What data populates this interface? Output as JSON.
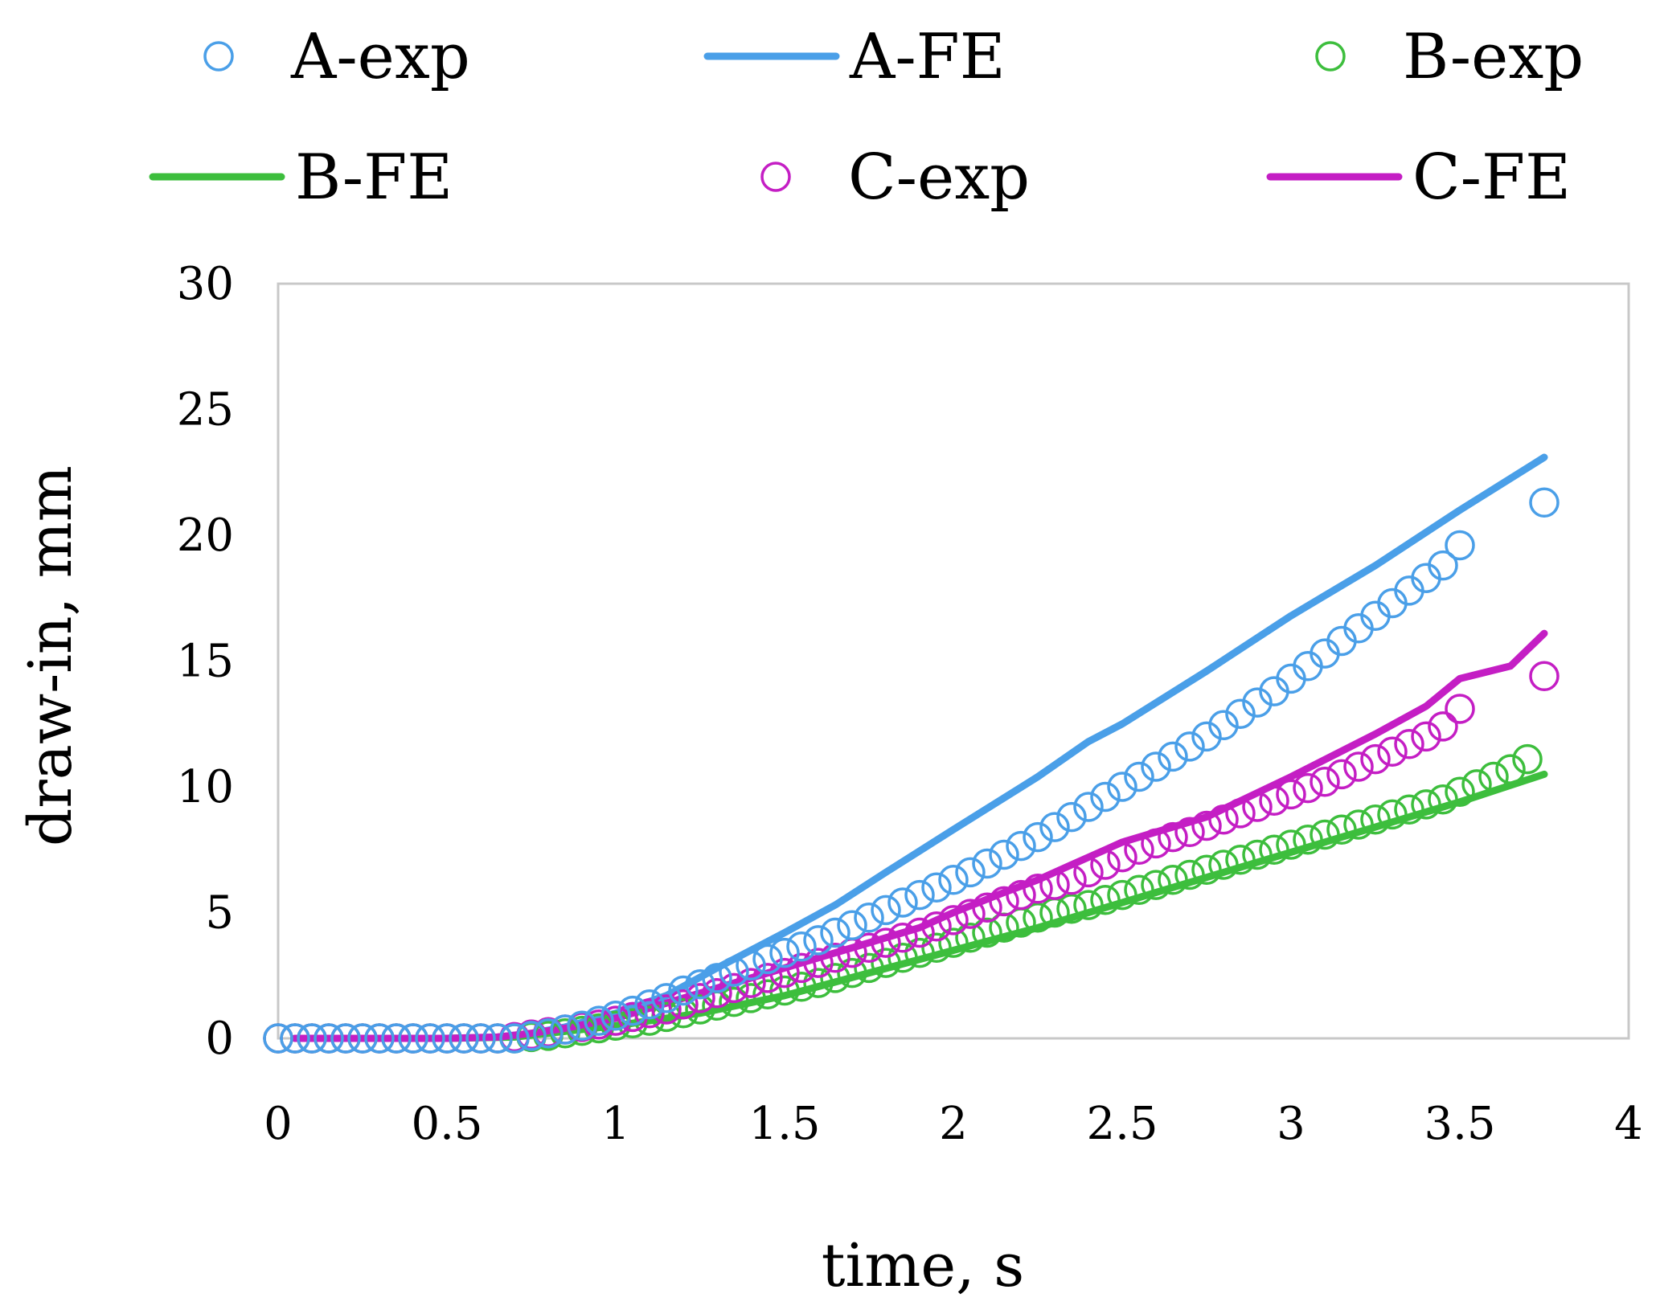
{
  "chart_data": {
    "type": "scatter",
    "title": "",
    "xlabel": "time, s",
    "ylabel": "draw-in, mm",
    "xlim": [
      0,
      4
    ],
    "ylim": [
      0,
      30
    ],
    "xticks": [
      0,
      0.5,
      1,
      1.5,
      2,
      2.5,
      3,
      3.5,
      4
    ],
    "xtick_labels": [
      "0",
      "0.5",
      "1",
      "1.5",
      "2",
      "2.5",
      "3",
      "3.5",
      "4"
    ],
    "yticks": [
      0,
      5,
      10,
      15,
      20,
      25,
      30
    ],
    "ytick_labels": [
      "0",
      "5",
      "10",
      "15",
      "20",
      "25",
      "30"
    ],
    "legend_position": "top",
    "grid": false,
    "series": [
      {
        "name": "A-exp",
        "kind": "markers",
        "color": "#4a9fe8",
        "x": [
          0,
          0.05,
          0.1,
          0.15,
          0.2,
          0.25,
          0.3,
          0.35,
          0.4,
          0.45,
          0.5,
          0.55,
          0.6,
          0.65,
          0.7,
          0.75,
          0.8,
          0.85,
          0.9,
          0.95,
          1,
          1.05,
          1.1,
          1.15,
          1.2,
          1.25,
          1.3,
          1.35,
          1.4,
          1.45,
          1.5,
          1.55,
          1.6,
          1.65,
          1.7,
          1.75,
          1.8,
          1.85,
          1.9,
          1.95,
          2,
          2.05,
          2.1,
          2.15,
          2.2,
          2.25,
          2.3,
          2.35,
          2.4,
          2.45,
          2.5,
          2.55,
          2.6,
          2.65,
          2.7,
          2.75,
          2.8,
          2.85,
          2.9,
          2.95,
          3,
          3.05,
          3.1,
          3.15,
          3.2,
          3.25,
          3.3,
          3.35,
          3.4,
          3.45,
          3.5,
          3.75
        ],
        "y": [
          0,
          0,
          0,
          0,
          0,
          0,
          0,
          0,
          0,
          0,
          0,
          0,
          0,
          0,
          0,
          0.1,
          0.2,
          0.35,
          0.5,
          0.7,
          0.9,
          1.1,
          1.35,
          1.6,
          1.9,
          2.15,
          2.4,
          2.65,
          2.9,
          3.15,
          3.4,
          3.65,
          3.9,
          4.2,
          4.5,
          4.8,
          5.1,
          5.4,
          5.7,
          6.0,
          6.3,
          6.6,
          6.95,
          7.3,
          7.65,
          8.0,
          8.4,
          8.8,
          9.2,
          9.6,
          10.0,
          10.4,
          10.8,
          11.2,
          11.6,
          12.0,
          12.45,
          12.9,
          13.35,
          13.8,
          14.3,
          14.8,
          15.3,
          15.8,
          16.3,
          16.8,
          17.3,
          17.8,
          18.3,
          18.8,
          19.6,
          21.3
        ]
      },
      {
        "name": "A-FE",
        "kind": "line",
        "color": "#4a9fe8",
        "x": [
          0.05,
          0.25,
          0.5,
          0.65,
          0.75,
          0.85,
          1.0,
          1.15,
          1.3,
          1.5,
          1.65,
          1.8,
          2.0,
          2.25,
          2.4,
          2.5,
          2.75,
          3.0,
          3.25,
          3.5,
          3.75
        ],
        "y": [
          0,
          0,
          0,
          0.05,
          0.2,
          0.45,
          1.0,
          1.7,
          2.8,
          4.2,
          5.3,
          6.6,
          8.3,
          10.4,
          11.8,
          12.5,
          14.6,
          16.8,
          18.8,
          21.0,
          23.1
        ]
      },
      {
        "name": "B-exp",
        "kind": "markers",
        "color": "#3dbe3d",
        "x": [
          0,
          0.05,
          0.1,
          0.15,
          0.2,
          0.25,
          0.3,
          0.35,
          0.4,
          0.45,
          0.5,
          0.55,
          0.6,
          0.65,
          0.7,
          0.75,
          0.8,
          0.85,
          0.9,
          0.95,
          1,
          1.05,
          1.1,
          1.15,
          1.2,
          1.25,
          1.3,
          1.35,
          1.4,
          1.45,
          1.5,
          1.55,
          1.6,
          1.65,
          1.7,
          1.75,
          1.8,
          1.85,
          1.9,
          1.95,
          2,
          2.05,
          2.1,
          2.15,
          2.2,
          2.25,
          2.3,
          2.35,
          2.4,
          2.45,
          2.5,
          2.55,
          2.6,
          2.65,
          2.7,
          2.75,
          2.8,
          2.85,
          2.9,
          2.95,
          3,
          3.05,
          3.1,
          3.15,
          3.2,
          3.25,
          3.3,
          3.35,
          3.4,
          3.45,
          3.5,
          3.55,
          3.6,
          3.65,
          3.7
        ],
        "y": [
          0,
          0,
          0,
          0,
          0,
          0,
          0,
          0,
          0,
          0,
          0,
          0,
          0,
          0,
          0,
          0.05,
          0.1,
          0.2,
          0.3,
          0.4,
          0.5,
          0.6,
          0.7,
          0.85,
          1.0,
          1.15,
          1.3,
          1.45,
          1.6,
          1.75,
          1.9,
          2.05,
          2.2,
          2.4,
          2.6,
          2.8,
          3.0,
          3.2,
          3.4,
          3.6,
          3.8,
          4.0,
          4.2,
          4.4,
          4.6,
          4.8,
          5.0,
          5.15,
          5.3,
          5.5,
          5.7,
          5.9,
          6.1,
          6.3,
          6.5,
          6.7,
          6.9,
          7.1,
          7.3,
          7.5,
          7.7,
          7.9,
          8.1,
          8.3,
          8.5,
          8.7,
          8.9,
          9.1,
          9.3,
          9.5,
          9.8,
          10.1,
          10.4,
          10.7,
          11.1
        ]
      },
      {
        "name": "B-FE",
        "kind": "line",
        "color": "#3dbe3d",
        "x": [
          0.05,
          0.5,
          0.7,
          0.8,
          1.0,
          1.25,
          1.5,
          1.75,
          2.0,
          2.25,
          2.5,
          2.75,
          3.0,
          3.25,
          3.5,
          3.75
        ],
        "y": [
          0,
          0,
          0.05,
          0.2,
          0.5,
          1.0,
          1.7,
          2.6,
          3.5,
          4.4,
          5.4,
          6.4,
          7.4,
          8.4,
          9.4,
          10.5
        ]
      },
      {
        "name": "C-exp",
        "kind": "markers",
        "color": "#c41ec4",
        "x": [
          0,
          0.05,
          0.1,
          0.15,
          0.2,
          0.25,
          0.3,
          0.35,
          0.4,
          0.45,
          0.5,
          0.55,
          0.6,
          0.65,
          0.7,
          0.75,
          0.8,
          0.85,
          0.9,
          0.95,
          1,
          1.05,
          1.1,
          1.15,
          1.2,
          1.25,
          1.3,
          1.35,
          1.4,
          1.45,
          1.5,
          1.55,
          1.6,
          1.65,
          1.7,
          1.75,
          1.8,
          1.85,
          1.9,
          1.95,
          2,
          2.05,
          2.1,
          2.15,
          2.2,
          2.25,
          2.3,
          2.35,
          2.4,
          2.45,
          2.5,
          2.55,
          2.6,
          2.65,
          2.7,
          2.75,
          2.8,
          2.85,
          2.9,
          2.95,
          3,
          3.05,
          3.1,
          3.15,
          3.2,
          3.25,
          3.3,
          3.35,
          3.4,
          3.45,
          3.5,
          3.75
        ],
        "y": [
          0,
          0,
          0,
          0,
          0,
          0,
          0,
          0,
          0,
          0,
          0,
          0,
          0,
          0,
          0.05,
          0.15,
          0.25,
          0.35,
          0.45,
          0.55,
          0.7,
          0.85,
          1.0,
          1.15,
          1.35,
          1.6,
          1.8,
          2.0,
          2.2,
          2.4,
          2.6,
          2.8,
          3.0,
          3.2,
          3.4,
          3.6,
          3.8,
          4.0,
          4.2,
          4.45,
          4.7,
          4.95,
          5.2,
          5.45,
          5.7,
          5.95,
          6.1,
          6.3,
          6.6,
          6.9,
          7.2,
          7.5,
          7.75,
          8.0,
          8.2,
          8.45,
          8.7,
          8.95,
          9.2,
          9.45,
          9.7,
          9.95,
          10.2,
          10.5,
          10.8,
          11.1,
          11.4,
          11.7,
          12.0,
          12.4,
          13.1,
          14.4
        ]
      },
      {
        "name": "C-FE",
        "kind": "line",
        "color": "#c41ec4",
        "x": [
          0.05,
          0.5,
          0.65,
          0.75,
          0.85,
          1.0,
          1.1,
          1.25,
          1.4,
          1.5,
          1.6,
          1.75,
          1.9,
          2.0,
          2.15,
          2.25,
          2.35,
          2.45,
          2.5,
          2.6,
          2.75,
          3.0,
          3.25,
          3.4,
          3.5,
          3.65,
          3.75
        ],
        "y": [
          0,
          0,
          0.05,
          0.2,
          0.4,
          0.8,
          1.2,
          1.8,
          2.4,
          2.8,
          3.2,
          3.8,
          4.4,
          5.0,
          5.8,
          6.3,
          6.9,
          7.5,
          7.8,
          8.2,
          8.8,
          10.4,
          12.1,
          13.2,
          14.3,
          14.8,
          16.1
        ]
      }
    ]
  }
}
